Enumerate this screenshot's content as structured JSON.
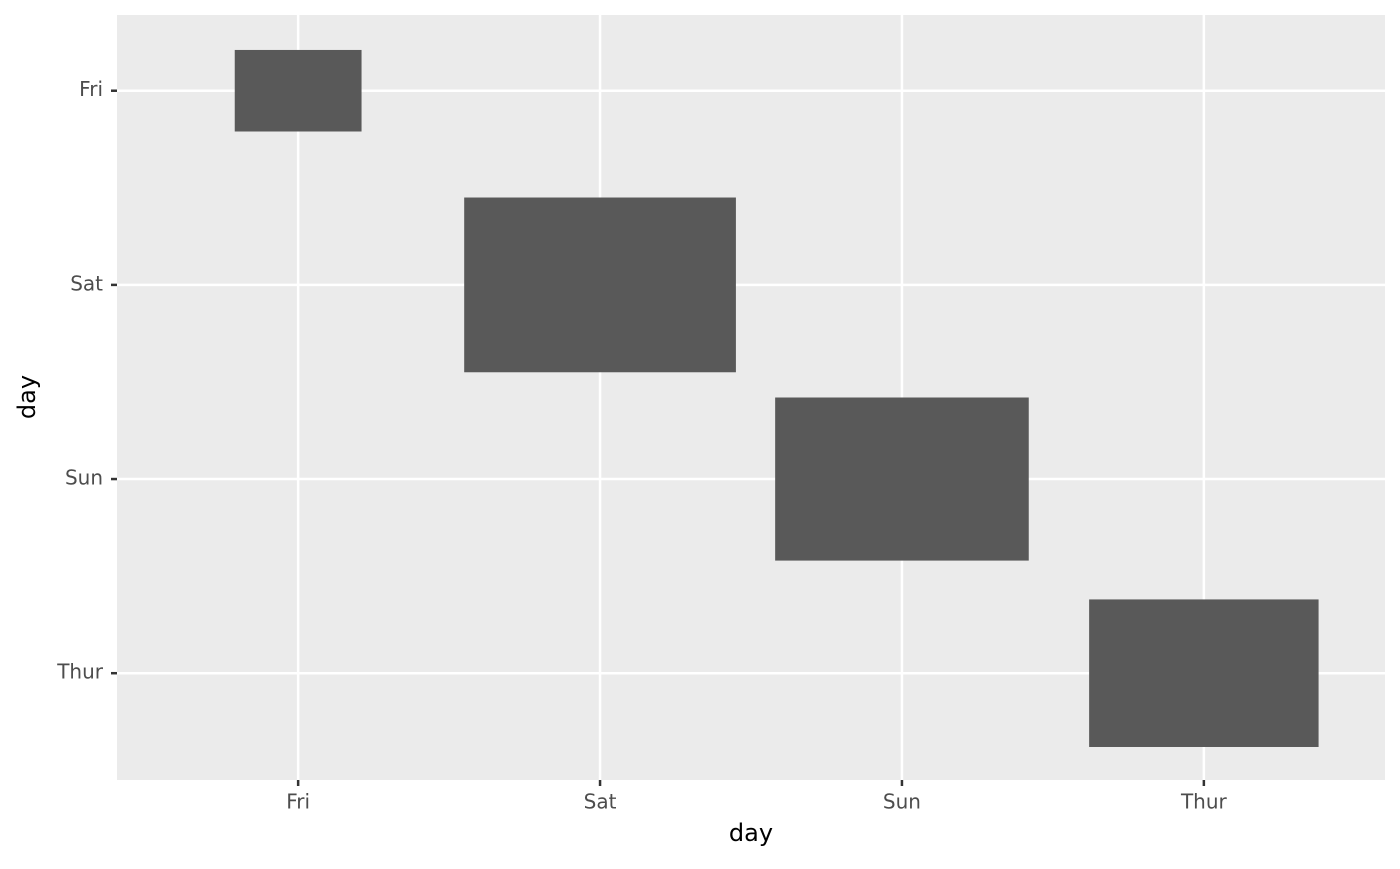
{
  "chart_data": {
    "type": "tile",
    "x_label": "day",
    "y_label": "day",
    "x_categories": [
      "Fri",
      "Sat",
      "Sun",
      "Thur"
    ],
    "y_categories": [
      "Fri",
      "Sat",
      "Sun",
      "Thur"
    ],
    "values": [
      0.42,
      0.9,
      0.84,
      0.76
    ],
    "color": "#595959",
    "panel_color": "#ebebeb",
    "xlim": [
      0.4,
      4.6
    ],
    "ylim": [
      0.61,
      4.55
    ],
    "grid": true
  }
}
